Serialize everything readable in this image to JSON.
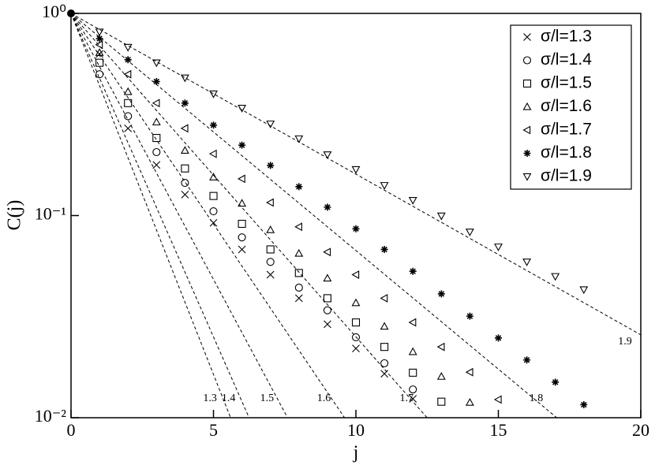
{
  "chart_data": {
    "type": "scatter",
    "x_label": "j",
    "y_label": "C(j)",
    "log_y": true,
    "legend": "upper right",
    "color": "#000000",
    "xlim": [
      0,
      20
    ],
    "xticks": [
      0,
      5,
      10,
      15,
      20
    ],
    "ylim": [
      0.01,
      1
    ],
    "yticks": [
      {
        "value": 1,
        "label": "10⁰"
      },
      {
        "value": 0.1,
        "label": "10⁻¹"
      },
      {
        "value": 0.01,
        "label": "10⁻²"
      }
    ],
    "origin_point": {
      "x": 0,
      "value": 1
    },
    "series": [
      {
        "name": "σ/l=1.3",
        "marker": "x",
        "x": [
          1,
          2,
          3,
          4,
          5,
          6,
          7,
          8,
          9,
          10,
          11,
          12
        ],
        "values": [
          0.63,
          0.27,
          0.178,
          0.127,
          0.092,
          0.068,
          0.051,
          0.039,
          0.029,
          0.022,
          0.0165,
          0.0124
        ]
      },
      {
        "name": "σ/l=1.4",
        "marker": "circle",
        "x": [
          1,
          2,
          3,
          4,
          5,
          6,
          7,
          8,
          9,
          10,
          11,
          12
        ],
        "values": [
          0.5,
          0.31,
          0.206,
          0.145,
          0.105,
          0.078,
          0.059,
          0.044,
          0.034,
          0.025,
          0.0186,
          0.0138
        ]
      },
      {
        "name": "σ/l=1.5",
        "marker": "square",
        "x": [
          1,
          2,
          3,
          4,
          5,
          6,
          7,
          8,
          9,
          10,
          11,
          12,
          13
        ],
        "values": [
          0.57,
          0.36,
          0.242,
          0.171,
          0.125,
          0.091,
          0.068,
          0.052,
          0.039,
          0.0296,
          0.0224,
          0.0167,
          0.012
        ]
      },
      {
        "name": "σ/l=1.6",
        "marker": "triangle-up",
        "x": [
          1,
          2,
          3,
          4,
          5,
          6,
          7,
          8,
          9,
          10,
          11,
          12,
          13,
          14
        ],
        "values": [
          0.64,
          0.41,
          0.29,
          0.21,
          0.155,
          0.115,
          0.085,
          0.065,
          0.049,
          0.037,
          0.0283,
          0.0212,
          0.016,
          0.0119
        ]
      },
      {
        "name": "σ/l=1.7",
        "marker": "triangle-left",
        "x": [
          1,
          2,
          3,
          4,
          5,
          6,
          7,
          8,
          9,
          10,
          11,
          12,
          13,
          14,
          15
        ],
        "values": [
          0.7,
          0.5,
          0.36,
          0.27,
          0.202,
          0.152,
          0.116,
          0.088,
          0.066,
          0.051,
          0.039,
          0.0296,
          0.0224,
          0.0168,
          0.0123
        ]
      },
      {
        "name": "σ/l=1.8",
        "marker": "star",
        "x": [
          1,
          2,
          3,
          4,
          5,
          6,
          7,
          8,
          9,
          10,
          11,
          12,
          13,
          14,
          15,
          16,
          17,
          18
        ],
        "values": [
          0.75,
          0.59,
          0.46,
          0.36,
          0.28,
          0.223,
          0.177,
          0.139,
          0.11,
          0.086,
          0.068,
          0.053,
          0.041,
          0.0318,
          0.0248,
          0.0193,
          0.015,
          0.0116
        ]
      },
      {
        "name": "σ/l=1.9",
        "marker": "triangle-down",
        "x": [
          1,
          2,
          3,
          4,
          5,
          6,
          7,
          8,
          9,
          10,
          11,
          12,
          13,
          14,
          15,
          16,
          17,
          18
        ],
        "values": [
          0.81,
          0.68,
          0.57,
          0.48,
          0.4,
          0.34,
          0.284,
          0.24,
          0.2,
          0.169,
          0.141,
          0.119,
          0.0996,
          0.083,
          0.07,
          0.059,
          0.05,
          0.043
        ]
      }
    ],
    "fit_lines": [
      {
        "label": "1.3",
        "x": [
          0,
          5.6
        ],
        "values": [
          1,
          0.01
        ]
      },
      {
        "label": "1.4",
        "x": [
          0,
          6.25
        ],
        "values": [
          1,
          0.01
        ]
      },
      {
        "label": "1.5",
        "x": [
          0,
          7.6
        ],
        "values": [
          1,
          0.01
        ]
      },
      {
        "label": "1.6",
        "x": [
          0,
          9.6
        ],
        "values": [
          1,
          0.01
        ]
      },
      {
        "label": "1.7",
        "x": [
          0,
          12.5
        ],
        "values": [
          1,
          0.01
        ]
      },
      {
        "label": "1.8",
        "x": [
          0,
          17.05
        ],
        "values": [
          1,
          0.01
        ]
      },
      {
        "label": "1.9",
        "x": [
          0,
          20
        ],
        "values": [
          1,
          0.0257
        ]
      }
    ]
  }
}
